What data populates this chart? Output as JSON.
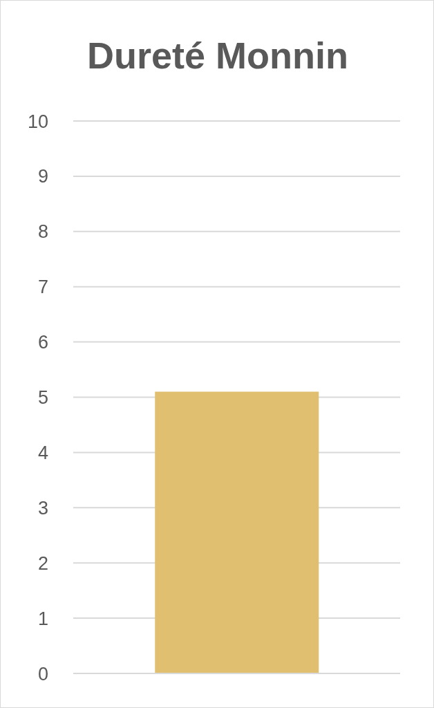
{
  "chart_data": {
    "type": "bar",
    "title": "Dureté Monnin",
    "categories": [
      null
    ],
    "values": [
      5.1
    ],
    "color": "#e0c070",
    "ylim": [
      0,
      10
    ],
    "yticks": [
      0,
      1,
      2,
      3,
      4,
      5,
      6,
      7,
      8,
      9,
      10
    ],
    "grid": "y",
    "legend": false
  }
}
